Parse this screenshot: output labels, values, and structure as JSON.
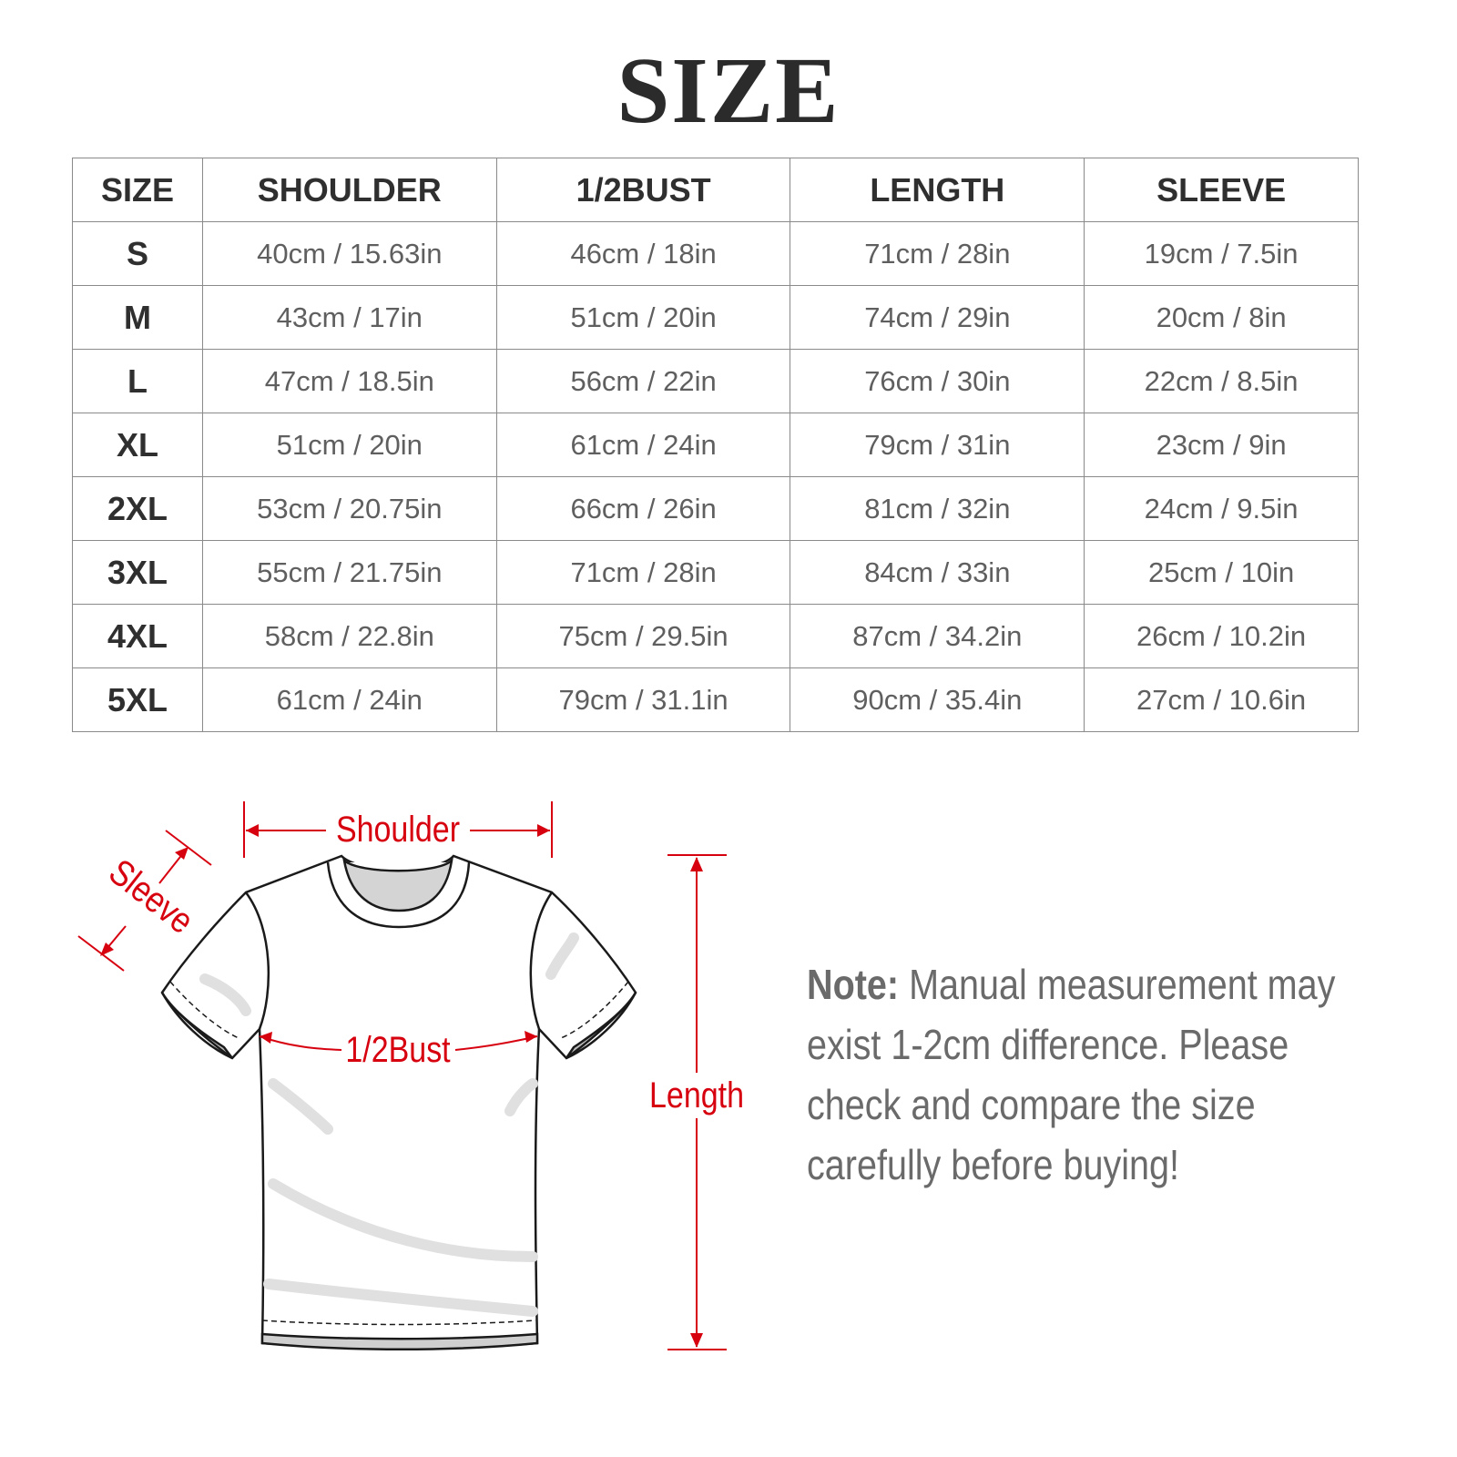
{
  "title": "SIZE",
  "table": {
    "headers": [
      "SIZE",
      "SHOULDER",
      "1/2BUST",
      "LENGTH",
      "SLEEVE"
    ],
    "rows": [
      [
        "S",
        "40cm / 15.63in",
        "46cm / 18in",
        "71cm / 28in",
        "19cm / 7.5in"
      ],
      [
        "M",
        "43cm / 17in",
        "51cm / 20in",
        "74cm / 29in",
        "20cm / 8in"
      ],
      [
        "L",
        "47cm / 18.5in",
        "56cm / 22in",
        "76cm / 30in",
        "22cm / 8.5in"
      ],
      [
        "XL",
        "51cm / 20in",
        "61cm / 24in",
        "79cm / 31in",
        "23cm / 9in"
      ],
      [
        "2XL",
        "53cm / 20.75in",
        "66cm / 26in",
        "81cm / 32in",
        "24cm / 9.5in"
      ],
      [
        "3XL",
        "55cm / 21.75in",
        "71cm / 28in",
        "84cm / 33in",
        "25cm / 10in"
      ],
      [
        "4XL",
        "58cm / 22.8in",
        "75cm / 29.5in",
        "87cm / 34.2in",
        "26cm / 10.2in"
      ],
      [
        "5XL",
        "61cm / 24in",
        "79cm / 31.1in",
        "90cm / 35.4in",
        "27cm / 10.6in"
      ]
    ]
  },
  "diagram": {
    "labels": {
      "shoulder": "Shoulder",
      "sleeve": "Sleeve",
      "bust": "1/2Bust",
      "length": "Length"
    },
    "accent_color": "#d7000f"
  },
  "note": {
    "label": "Note:",
    "text": "Manual measurement may exist 1-2cm difference. Please check and compare the size carefully before buying!"
  }
}
